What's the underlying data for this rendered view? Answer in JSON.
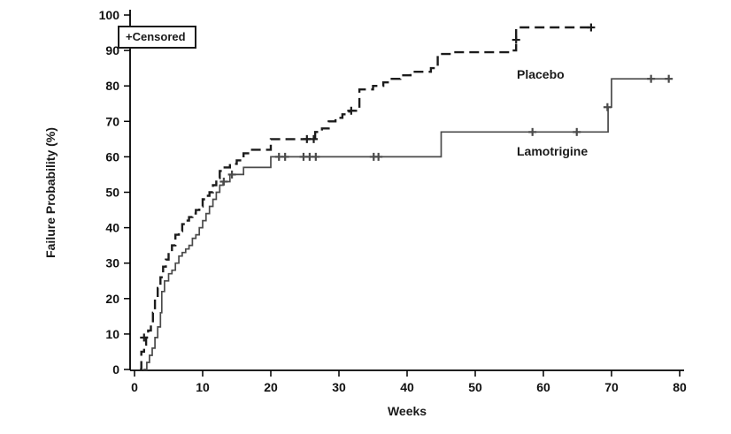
{
  "chart_data": {
    "type": "line",
    "subtype": "kaplan-meier-step",
    "title": "",
    "xlabel": "Weeks",
    "ylabel": "Failure Probability (%)",
    "xlim": [
      0,
      80
    ],
    "ylim": [
      0,
      100
    ],
    "x_ticks": [
      0,
      10,
      20,
      30,
      40,
      50,
      60,
      70,
      80
    ],
    "y_ticks": [
      0,
      10,
      20,
      30,
      40,
      50,
      60,
      70,
      80,
      90,
      100
    ],
    "grid": false,
    "legend_position": "top-left",
    "legend": {
      "censored_label": "+Censored"
    },
    "series": [
      {
        "name": "Placebo",
        "style": "dashed",
        "color": "#1c1c1c",
        "width": 2.4,
        "points": [
          [
            0.8,
            0
          ],
          [
            1,
            5
          ],
          [
            1.4,
            7
          ],
          [
            1.7,
            9
          ],
          [
            2,
            11
          ],
          [
            2.4,
            13
          ],
          [
            2.7,
            16
          ],
          [
            3,
            20
          ],
          [
            3.4,
            23
          ],
          [
            3.8,
            26
          ],
          [
            4.2,
            29
          ],
          [
            4.6,
            31
          ],
          [
            5,
            33
          ],
          [
            5.5,
            35
          ],
          [
            6,
            38
          ],
          [
            6.5,
            39
          ],
          [
            7,
            41
          ],
          [
            7.5,
            42
          ],
          [
            8,
            43
          ],
          [
            8.5,
            44
          ],
          [
            9,
            45
          ],
          [
            9.5,
            46
          ],
          [
            10,
            48
          ],
          [
            10.5,
            49
          ],
          [
            11,
            50
          ],
          [
            11.5,
            52
          ],
          [
            12,
            54
          ],
          [
            12.5,
            56
          ],
          [
            13,
            57
          ],
          [
            14,
            58
          ],
          [
            15,
            59
          ],
          [
            16,
            61
          ],
          [
            17,
            62
          ],
          [
            20,
            65
          ],
          [
            26,
            65
          ],
          [
            26.5,
            67
          ],
          [
            27.5,
            68
          ],
          [
            28.5,
            70
          ],
          [
            29.5,
            71
          ],
          [
            30.5,
            72
          ],
          [
            31.5,
            73
          ],
          [
            33,
            79
          ],
          [
            35,
            80
          ],
          [
            36.5,
            81
          ],
          [
            37.5,
            82
          ],
          [
            39,
            83
          ],
          [
            40.5,
            84
          ],
          [
            43.5,
            85
          ],
          [
            44.5,
            89
          ],
          [
            46.5,
            89.5
          ],
          [
            55,
            90
          ],
          [
            56,
            96.5
          ],
          [
            67.5,
            96.5
          ]
        ],
        "censored": [
          [
            1.4,
            9
          ],
          [
            25.3,
            65
          ],
          [
            26.3,
            65
          ],
          [
            31.8,
            73
          ],
          [
            56,
            93
          ],
          [
            67,
            96.5
          ]
        ]
      },
      {
        "name": "Lamotrigine",
        "style": "solid",
        "color": "#4a4a4a",
        "width": 1.7,
        "points": [
          [
            1.3,
            0
          ],
          [
            1.8,
            2
          ],
          [
            2.2,
            4
          ],
          [
            2.6,
            6
          ],
          [
            3,
            9
          ],
          [
            3.4,
            12
          ],
          [
            3.8,
            16
          ],
          [
            4,
            22
          ],
          [
            4.4,
            25
          ],
          [
            5,
            27
          ],
          [
            5.5,
            28
          ],
          [
            6,
            30
          ],
          [
            6.5,
            32
          ],
          [
            7,
            33
          ],
          [
            7.5,
            34
          ],
          [
            8,
            35
          ],
          [
            8.5,
            37
          ],
          [
            9,
            38
          ],
          [
            9.5,
            40
          ],
          [
            10,
            42
          ],
          [
            10.5,
            44
          ],
          [
            11,
            46
          ],
          [
            11.5,
            48
          ],
          [
            12,
            50
          ],
          [
            12.5,
            52
          ],
          [
            13,
            53
          ],
          [
            14,
            55
          ],
          [
            16,
            57
          ],
          [
            20,
            60
          ],
          [
            44.5,
            60
          ],
          [
            45,
            67
          ],
          [
            69,
            67
          ],
          [
            69.5,
            74
          ],
          [
            70,
            82
          ],
          [
            78.5,
            82
          ]
        ],
        "censored": [
          [
            13.1,
            53
          ],
          [
            14.3,
            55
          ],
          [
            21.2,
            60
          ],
          [
            22.1,
            60
          ],
          [
            24.8,
            60
          ],
          [
            25.7,
            60
          ],
          [
            26.6,
            60
          ],
          [
            35.1,
            60
          ],
          [
            35.8,
            60
          ],
          [
            58.4,
            67
          ],
          [
            64.9,
            67
          ],
          [
            69.4,
            74
          ],
          [
            75.8,
            82
          ],
          [
            78.4,
            82
          ]
        ]
      }
    ]
  }
}
